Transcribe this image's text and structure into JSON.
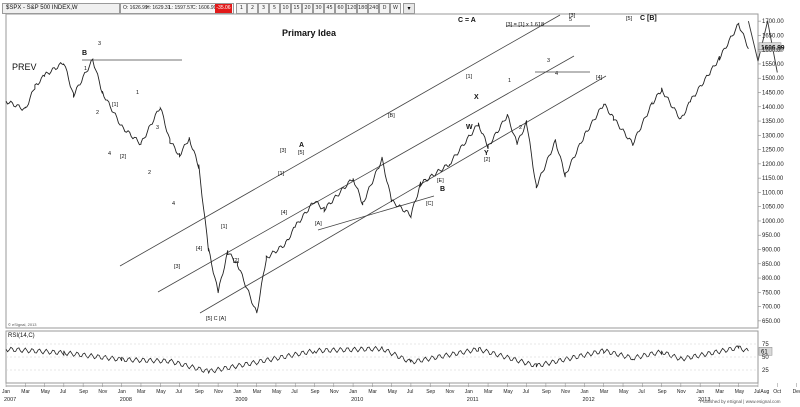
{
  "symbol_line": "$SPX - S&P 500 INDEX,W",
  "ohlc": {
    "open": "O: 1626.99",
    "high": "H: 1629.31",
    "low": "L: 1597.57",
    "close": "C: 1606.99",
    "change": "-35.06"
  },
  "toolbar": {
    "buttons": [
      "1",
      "2",
      "3",
      "5",
      "10",
      "15",
      "20",
      "30",
      "45",
      "60",
      "120",
      "180",
      "240",
      "D",
      "W"
    ]
  },
  "colors": {
    "price": "#222222",
    "channel": "#444444",
    "change_badge": "#e21a1a",
    "price_label_bg": "#d9d9d9"
  },
  "chart_data": {
    "type": "line",
    "title": "Primary Idea",
    "subtitle": "PREV",
    "y_axis": {
      "ticks": [
        "1700.00",
        "1650.00",
        "1600.00",
        "1550.00",
        "1500.00",
        "1450.00",
        "1400.00",
        "1350.00",
        "1300.00",
        "1250.00",
        "1200.00",
        "1150.00",
        "1100.00",
        "1050.00",
        "1000.00",
        "950.00",
        "900.00",
        "850.00",
        "800.00",
        "750.00",
        "700.00",
        "650.00"
      ],
      "range": [
        625,
        1725
      ],
      "last_price_label": "1606.99"
    },
    "x_axis": {
      "months": [
        "Jan",
        "Mar",
        "May",
        "Jul",
        "Sep",
        "Nov",
        "Jan",
        "Mar",
        "May",
        "Jul",
        "Sep",
        "Nov",
        "Jan",
        "Mar",
        "May",
        "Jul",
        "Sep",
        "Nov",
        "Jan",
        "Mar",
        "May",
        "Jul",
        "Sep",
        "Nov",
        "Jan",
        "Mar",
        "May",
        "Jul",
        "Sep",
        "Nov",
        "Jan",
        "Mar",
        "May",
        "Jul",
        "Sep",
        "Nov",
        "Jan",
        "Mar",
        "May",
        "JulAug",
        "Oct",
        "Dec",
        "Feb",
        "Apr",
        "Jun"
      ],
      "years": [
        "2007",
        "2008",
        "2009",
        "2010",
        "2011",
        "2012",
        "2013"
      ],
      "range": [
        "2007-01",
        "2013-07"
      ]
    },
    "series": [
      {
        "name": "$SPX",
        "x": [
          "2007-01",
          "2007-03",
          "2007-04",
          "2007-05",
          "2007-07",
          "2007-08",
          "2007-10",
          "2007-11",
          "2008-01",
          "2008-03",
          "2008-05",
          "2008-06",
          "2008-07",
          "2008-08",
          "2008-09",
          "2008-10",
          "2008-11",
          "2008-12",
          "2009-01",
          "2009-03",
          "2009-04",
          "2009-06",
          "2009-07",
          "2009-09",
          "2009-10",
          "2010-01",
          "2010-02",
          "2010-04",
          "2010-05",
          "2010-07",
          "2010-08",
          "2010-11",
          "2011-02",
          "2011-03",
          "2011-05",
          "2011-06",
          "2011-07",
          "2011-08",
          "2011-10",
          "2011-11",
          "2012-01",
          "2012-03",
          "2012-04",
          "2012-06",
          "2012-08",
          "2012-09",
          "2012-11",
          "2012-12",
          "2013-02",
          "2013-03",
          "2013-05",
          "2013-06"
        ],
        "values": [
          1420,
          1390,
          1470,
          1510,
          1555,
          1440,
          1565,
          1450,
          1330,
          1270,
          1400,
          1280,
          1230,
          1290,
          1190,
          900,
          750,
          890,
          850,
          676,
          870,
          920,
          980,
          1070,
          1040,
          1150,
          1060,
          1217,
          1070,
          1020,
          1130,
          1200,
          1340,
          1260,
          1370,
          1270,
          1345,
          1120,
          1280,
          1160,
          1300,
          1410,
          1360,
          1270,
          1410,
          1460,
          1355,
          1420,
          1520,
          1570,
          1690,
          1607
        ]
      },
      {
        "name": "RSI(14,C)",
        "x": [
          "2007-01",
          "2007-07",
          "2008-01",
          "2008-06",
          "2008-10",
          "2009-03",
          "2009-09",
          "2010-04",
          "2010-07",
          "2011-02",
          "2011-08",
          "2012-03",
          "2012-06",
          "2012-09",
          "2012-11",
          "2013-05",
          "2013-06"
        ],
        "values": [
          65,
          58,
          45,
          42,
          22,
          40,
          62,
          66,
          40,
          65,
          33,
          62,
          48,
          60,
          46,
          68,
          61
        ]
      }
    ],
    "projection": {
      "x": [
        "2013-06",
        "2013-07",
        "2013-08",
        "2013-09"
      ],
      "values": [
        1700,
        1560,
        1700,
        1520
      ]
    },
    "rsi": {
      "label": "RSI(14,C)",
      "ticks": [
        "75",
        "50",
        "25"
      ],
      "range": [
        0,
        100
      ],
      "last_value": "61"
    },
    "wave_labels": [
      "B",
      "1",
      "2",
      "3",
      "4",
      "[1]",
      "[2]",
      "1",
      "2",
      "3",
      "4",
      "[3]",
      "[4]",
      "[1]",
      "[2]",
      "[1]",
      "[3]",
      "[5] C [A]",
      "A",
      "[5]",
      "[4]",
      "[A]",
      "[B]",
      "[C]",
      "[E]",
      "B",
      "X",
      "W",
      "Y",
      "[1]",
      "[2]",
      "1",
      "2",
      "3",
      "4",
      "5",
      "[3]",
      "[4]",
      "[5]",
      "C [B]",
      "C = A",
      "[3] = [1] x 1.618"
    ],
    "legend": "",
    "grid": false
  },
  "footer": {
    "left_note": "© eSignal, 2013",
    "credit": "Published by eSignal | www.esignal.com"
  }
}
